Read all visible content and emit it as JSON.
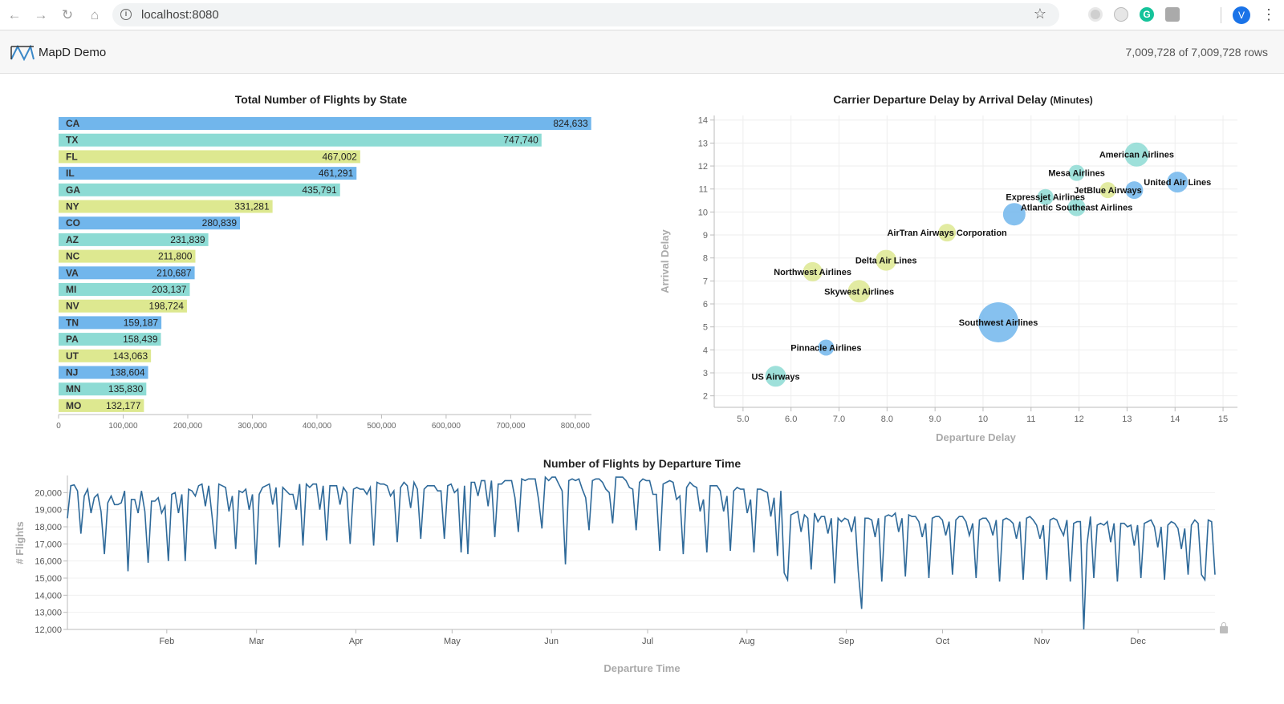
{
  "browser": {
    "url": "localhost:8080",
    "profile_initial": "V",
    "ext3_letter": "G"
  },
  "app": {
    "title": "MapD Demo",
    "row_count": "7,009,728 of 7,009,728 rows"
  },
  "chart_data": [
    {
      "type": "bar",
      "orientation": "horizontal",
      "title": "Total Number of Flights by State",
      "categories": [
        "CA",
        "TX",
        "FL",
        "IL",
        "GA",
        "NY",
        "CO",
        "AZ",
        "NC",
        "VA",
        "MI",
        "NV",
        "TN",
        "PA",
        "UT",
        "NJ",
        "MN",
        "MO"
      ],
      "values": [
        824633,
        747740,
        467002,
        461291,
        435791,
        331281,
        280839,
        231839,
        211800,
        210687,
        203137,
        198724,
        159187,
        158439,
        143063,
        138604,
        135830,
        132177
      ],
      "value_labels": [
        "824,633",
        "747,740",
        "467,002",
        "461,291",
        "435,791",
        "331,281",
        "280,839",
        "231,839",
        "211,800",
        "210,687",
        "203,137",
        "198,724",
        "159,187",
        "158,439",
        "143,063",
        "138,604",
        "135,830",
        "132,177"
      ],
      "colors": [
        "#71b6ec",
        "#8ddbd4",
        "#dde890"
      ],
      "xlim": [
        0,
        825000
      ],
      "xticks": [
        0,
        100000,
        200000,
        300000,
        400000,
        500000,
        600000,
        700000,
        800000
      ],
      "xtick_labels": [
        "0",
        "100,000",
        "200,000",
        "300,000",
        "400,000",
        "500,000",
        "600,000",
        "700,000",
        "800,000"
      ]
    },
    {
      "type": "scatter",
      "title": "Carrier Departure Delay by Arrival Delay",
      "subtitle": "(Minutes)",
      "xlabel": "Departure Delay",
      "ylabel": "Arrival Delay",
      "xlim": [
        4.4,
        15.3
      ],
      "ylim": [
        1.5,
        14.2
      ],
      "xticks": [
        5,
        6,
        7,
        8,
        9,
        10,
        11,
        12,
        13,
        14,
        15
      ],
      "xtick_labels": [
        "5.0",
        "6.0",
        "7.0",
        "8.0",
        "9.0",
        "10",
        "11",
        "12",
        "13",
        "14",
        "15"
      ],
      "yticks": [
        2,
        3,
        4,
        5,
        6,
        7,
        8,
        9,
        10,
        11,
        12,
        13,
        14
      ],
      "ytick_labels": [
        "2",
        "3",
        "4",
        "5",
        "6",
        "7",
        "8",
        "9",
        "10",
        "11",
        "12",
        "13",
        "14"
      ],
      "grid": true,
      "points": [
        {
          "label": "American Airlines",
          "x": 13.2,
          "y": 12.5,
          "size": 15,
          "color": "#8ddbd4"
        },
        {
          "label": "Mesa Airlines",
          "x": 11.95,
          "y": 11.7,
          "size": 10,
          "color": "#8ddbd4"
        },
        {
          "label": "United Air Lines",
          "x": 14.05,
          "y": 11.3,
          "size": 13,
          "color": "#71b6ec"
        },
        {
          "label": "JetBlue Airways",
          "x": 12.6,
          "y": 10.95,
          "size": 10,
          "color": "#dde890"
        },
        {
          "label": "",
          "x": 13.15,
          "y": 10.95,
          "size": 11,
          "color": "#71b6ec"
        },
        {
          "label": "Expressjet Airlines",
          "x": 11.3,
          "y": 10.65,
          "size": 10,
          "color": "#8ddbd4"
        },
        {
          "label": "Atlantic Southeast Airlines",
          "x": 11.95,
          "y": 10.2,
          "size": 11,
          "color": "#8ddbd4"
        },
        {
          "label": "",
          "x": 10.65,
          "y": 9.9,
          "size": 14,
          "color": "#71b6ec"
        },
        {
          "label": "AirTran Airways Corporation",
          "x": 9.25,
          "y": 9.1,
          "size": 11,
          "color": "#dde890"
        },
        {
          "label": "Delta Air Lines",
          "x": 7.98,
          "y": 7.9,
          "size": 13,
          "color": "#dde890"
        },
        {
          "label": "Northwest Airlines",
          "x": 6.45,
          "y": 7.4,
          "size": 12,
          "color": "#dde890"
        },
        {
          "label": "Skywest Airlines",
          "x": 7.42,
          "y": 6.55,
          "size": 14,
          "color": "#dde890"
        },
        {
          "label": "Southwest Airlines",
          "x": 10.32,
          "y": 5.2,
          "size": 25,
          "color": "#71b6ec"
        },
        {
          "label": "Pinnacle Airlines",
          "x": 6.73,
          "y": 4.1,
          "size": 10,
          "color": "#71b6ec"
        },
        {
          "label": "US Airways",
          "x": 5.68,
          "y": 2.85,
          "size": 13,
          "color": "#8ddbd4"
        }
      ]
    },
    {
      "type": "line",
      "title": "Number of Flights by Departure Time",
      "xlabel": "Departure Time",
      "ylabel": "# Flights",
      "ylim": [
        12000,
        21000
      ],
      "yticks": [
        12000,
        13000,
        14000,
        15000,
        16000,
        17000,
        18000,
        19000,
        20000
      ],
      "ytick_labels": [
        "12,000",
        "13,000",
        "14,000",
        "15,000",
        "16,000",
        "17,000",
        "18,000",
        "19,000",
        "20,000"
      ],
      "x_tick_labels": [
        "Feb",
        "Mar",
        "Apr",
        "May",
        "Jun",
        "Jul",
        "Aug",
        "Sep",
        "Oct",
        "Nov",
        "Dec"
      ],
      "x_tick_days": [
        31,
        59,
        90,
        120,
        151,
        181,
        212,
        243,
        273,
        304,
        334
      ],
      "x_range_days": [
        0,
        358
      ],
      "line_color": "#2f6a9a",
      "values": [
        18500,
        20400,
        20450,
        20100,
        17600,
        19800,
        20200,
        18800,
        19700,
        19900,
        18900,
        16400,
        19400,
        19800,
        19300,
        19300,
        19400,
        20100,
        15400,
        19600,
        19600,
        18800,
        20100,
        18900,
        15900,
        19500,
        19500,
        19700,
        18800,
        19200,
        16000,
        19900,
        20000,
        18800,
        19900,
        16000,
        20200,
        20100,
        19800,
        20400,
        20500,
        19200,
        20400,
        18600,
        16700,
        20500,
        20400,
        20300,
        18900,
        19800,
        16700,
        20100,
        20000,
        20200,
        19000,
        19900,
        15800,
        19900,
        20300,
        20400,
        20500,
        19300,
        20300,
        16800,
        20300,
        20100,
        19900,
        19900,
        19000,
        20500,
        16900,
        20500,
        20300,
        20500,
        20500,
        19000,
        20400,
        17200,
        20400,
        20400,
        20400,
        19300,
        20300,
        20000,
        17000,
        20200,
        20300,
        20200,
        20200,
        19900,
        20300,
        16900,
        20600,
        20500,
        20500,
        20400,
        19800,
        20100,
        17100,
        20300,
        20600,
        20400,
        19100,
        20600,
        20200,
        17300,
        20200,
        20400,
        20400,
        20400,
        20100,
        20100,
        17300,
        20400,
        20500,
        20000,
        20200,
        16500,
        20400,
        16400,
        20600,
        20600,
        19800,
        20700,
        20700,
        19200,
        20700,
        17400,
        20500,
        20500,
        20700,
        20700,
        20700,
        19700,
        17700,
        20800,
        20700,
        20800,
        20800,
        20800,
        19600,
        17900,
        20900,
        20700,
        20900,
        20900,
        20500,
        20100,
        15800,
        20700,
        20800,
        20700,
        20800,
        20200,
        19700,
        17800,
        20700,
        20800,
        20800,
        20600,
        20200,
        20000,
        18200,
        20900,
        20900,
        20900,
        20700,
        20300,
        20200,
        17800,
        20600,
        20800,
        20700,
        20700,
        19900,
        19900,
        16600,
        20500,
        20600,
        20700,
        20600,
        19600,
        19800,
        16400,
        20300,
        20600,
        20400,
        20300,
        18900,
        19600,
        16500,
        20400,
        20400,
        20400,
        20100,
        18900,
        19800,
        16600,
        20100,
        20300,
        20200,
        20200,
        18800,
        19600,
        16500,
        20200,
        20200,
        20100,
        20000,
        18600,
        19700,
        16300,
        20100,
        15300,
        14900,
        18700,
        18800,
        18900,
        17700,
        18700,
        18500,
        15500,
        18800,
        18300,
        18600,
        18600,
        17600,
        18500,
        14700,
        18500,
        18300,
        18500,
        18400,
        17700,
        18600,
        15400,
        13200,
        18500,
        18500,
        18400,
        17400,
        18500,
        14800,
        18600,
        18700,
        18600,
        18800,
        17700,
        18500,
        15100,
        18700,
        18600,
        18600,
        18300,
        17400,
        18200,
        15000,
        18500,
        18600,
        18600,
        18400,
        17500,
        18300,
        15200,
        18400,
        18600,
        18600,
        18300,
        17500,
        18200,
        15000,
        18400,
        18500,
        18500,
        18200,
        17500,
        18400,
        14800,
        18400,
        18500,
        18400,
        18200,
        17300,
        18300,
        14900,
        18500,
        18600,
        18400,
        18100,
        17300,
        18100,
        14900,
        18400,
        18500,
        18400,
        17900,
        17500,
        18400,
        14800,
        18200,
        18300,
        18300,
        12000,
        17000,
        18600,
        15000,
        18100,
        18200,
        18100,
        18300,
        17100,
        18200,
        14800,
        18200,
        18200,
        18000,
        18100,
        16900,
        18100,
        15000,
        18200,
        18300,
        18400,
        18000,
        16800,
        18000,
        14900,
        18100,
        18300,
        18200,
        17900,
        16700,
        17900,
        15200,
        18100,
        18400,
        18200,
        15200,
        14900,
        18400,
        18300,
        15200
      ]
    }
  ]
}
